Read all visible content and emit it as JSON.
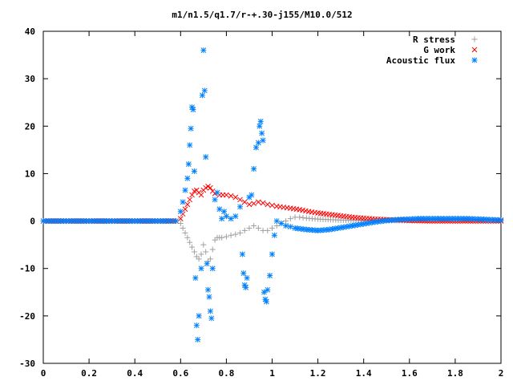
{
  "chart_data": {
    "type": "scatter",
    "title": "m1/n1.5/q1.7/r-+.30-j155/M10.0/512",
    "xlabel": "",
    "ylabel": "",
    "xlim": [
      0,
      2
    ],
    "ylim": [
      -30,
      40
    ],
    "x_ticks": [
      "0",
      "0.2",
      "0.4",
      "0.6",
      "0.8",
      "1",
      "1.2",
      "1.4",
      "1.6",
      "1.8",
      "2"
    ],
    "y_ticks": [
      "-30",
      "-20",
      "-10",
      "0",
      "10",
      "20",
      "30",
      "40"
    ],
    "legend_position": "top-right",
    "grid": false,
    "series": [
      {
        "name": "R stress",
        "color": "#a0a0a0",
        "marker": "plus",
        "points": [
          [
            0.0,
            0
          ],
          [
            0.1,
            0
          ],
          [
            0.2,
            0
          ],
          [
            0.3,
            0
          ],
          [
            0.4,
            0
          ],
          [
            0.5,
            0
          ],
          [
            0.58,
            0
          ],
          [
            0.6,
            -0.5
          ],
          [
            0.61,
            -1.5
          ],
          [
            0.62,
            -2.5
          ],
          [
            0.63,
            -3.5
          ],
          [
            0.64,
            -4.5
          ],
          [
            0.65,
            -5.5
          ],
          [
            0.66,
            -6.5
          ],
          [
            0.67,
            -7.5
          ],
          [
            0.68,
            -8.0
          ],
          [
            0.69,
            -7.0
          ],
          [
            0.7,
            -5.0
          ],
          [
            0.71,
            -6.5
          ],
          [
            0.72,
            -8.5
          ],
          [
            0.73,
            -8.0
          ],
          [
            0.74,
            -6.0
          ],
          [
            0.75,
            -4.0
          ],
          [
            0.76,
            -3.5
          ],
          [
            0.77,
            -3.5
          ],
          [
            0.78,
            -3.5
          ],
          [
            0.8,
            -3.3
          ],
          [
            0.82,
            -3.0
          ],
          [
            0.84,
            -2.8
          ],
          [
            0.86,
            -2.5
          ],
          [
            0.88,
            -2.0
          ],
          [
            0.9,
            -1.5
          ],
          [
            0.92,
            -1.0
          ],
          [
            0.94,
            -1.5
          ],
          [
            0.96,
            -2.0
          ],
          [
            0.98,
            -2.0
          ],
          [
            1.0,
            -1.5
          ],
          [
            1.02,
            -1.0
          ],
          [
            1.04,
            -0.5
          ],
          [
            1.06,
            0.0
          ],
          [
            1.08,
            0.5
          ],
          [
            1.1,
            0.8
          ],
          [
            1.12,
            0.8
          ],
          [
            1.15,
            0.6
          ],
          [
            1.2,
            0.4
          ],
          [
            1.3,
            0.2
          ],
          [
            1.4,
            0.1
          ],
          [
            1.5,
            0.1
          ],
          [
            1.6,
            0.1
          ],
          [
            1.7,
            0.1
          ],
          [
            1.8,
            0.1
          ],
          [
            1.9,
            0.1
          ],
          [
            2.0,
            0.1
          ]
        ]
      },
      {
        "name": "G work",
        "color": "#ff0000",
        "marker": "cross",
        "points": [
          [
            0.0,
            0
          ],
          [
            0.1,
            0
          ],
          [
            0.2,
            0
          ],
          [
            0.3,
            0
          ],
          [
            0.4,
            0
          ],
          [
            0.5,
            0
          ],
          [
            0.58,
            0
          ],
          [
            0.6,
            0.5
          ],
          [
            0.61,
            1.5
          ],
          [
            0.62,
            2.5
          ],
          [
            0.63,
            3.5
          ],
          [
            0.64,
            4.5
          ],
          [
            0.65,
            5.5
          ],
          [
            0.66,
            6.3
          ],
          [
            0.67,
            6.5
          ],
          [
            0.68,
            6.0
          ],
          [
            0.69,
            5.5
          ],
          [
            0.7,
            6.5
          ],
          [
            0.71,
            7.0
          ],
          [
            0.72,
            7.3
          ],
          [
            0.73,
            7.0
          ],
          [
            0.74,
            6.3
          ],
          [
            0.75,
            5.8
          ],
          [
            0.77,
            5.5
          ],
          [
            0.8,
            5.5
          ],
          [
            0.82,
            5.3
          ],
          [
            0.84,
            5.0
          ],
          [
            0.86,
            4.5
          ],
          [
            0.88,
            4.0
          ],
          [
            0.9,
            3.5
          ],
          [
            0.92,
            3.7
          ],
          [
            0.94,
            4.0
          ],
          [
            0.96,
            3.8
          ],
          [
            0.98,
            3.5
          ],
          [
            1.0,
            3.3
          ],
          [
            1.02,
            3.1
          ],
          [
            1.05,
            2.9
          ],
          [
            1.08,
            2.7
          ],
          [
            1.12,
            2.4
          ],
          [
            1.16,
            2.0
          ],
          [
            1.2,
            1.7
          ],
          [
            1.25,
            1.4
          ],
          [
            1.3,
            1.1
          ],
          [
            1.35,
            0.8
          ],
          [
            1.4,
            0.6
          ],
          [
            1.45,
            0.4
          ],
          [
            1.5,
            0.3
          ],
          [
            1.55,
            0.2
          ],
          [
            1.6,
            0.1
          ],
          [
            1.7,
            0.0
          ],
          [
            1.8,
            0.0
          ],
          [
            1.9,
            0.0
          ],
          [
            2.0,
            0.0
          ]
        ]
      },
      {
        "name": "Acoustic flux",
        "color": "#0080ff",
        "marker": "star",
        "points": [
          [
            0.0,
            0
          ],
          [
            0.05,
            0
          ],
          [
            0.1,
            0
          ],
          [
            0.15,
            0
          ],
          [
            0.2,
            0
          ],
          [
            0.25,
            0
          ],
          [
            0.3,
            0
          ],
          [
            0.35,
            0
          ],
          [
            0.4,
            0
          ],
          [
            0.45,
            0
          ],
          [
            0.5,
            0
          ],
          [
            0.55,
            0
          ],
          [
            0.58,
            0
          ],
          [
            0.6,
            2.0
          ],
          [
            0.61,
            4.0
          ],
          [
            0.62,
            6.5
          ],
          [
            0.63,
            9.0
          ],
          [
            0.635,
            12.0
          ],
          [
            0.64,
            16.0
          ],
          [
            0.645,
            19.5
          ],
          [
            0.65,
            24.0
          ],
          [
            0.655,
            23.5
          ],
          [
            0.66,
            10.5
          ],
          [
            0.665,
            -12.0
          ],
          [
            0.67,
            -22.0
          ],
          [
            0.675,
            -25.0
          ],
          [
            0.68,
            -20.0
          ],
          [
            0.69,
            -10.0
          ],
          [
            0.695,
            26.5
          ],
          [
            0.7,
            36.0
          ],
          [
            0.705,
            27.5
          ],
          [
            0.71,
            13.5
          ],
          [
            0.715,
            -9.0
          ],
          [
            0.72,
            -14.5
          ],
          [
            0.725,
            -16.0
          ],
          [
            0.73,
            -19.0
          ],
          [
            0.735,
            -20.5
          ],
          [
            0.74,
            -10.0
          ],
          [
            0.75,
            4.5
          ],
          [
            0.76,
            6.0
          ],
          [
            0.77,
            2.5
          ],
          [
            0.78,
            0.5
          ],
          [
            0.79,
            2.0
          ],
          [
            0.8,
            1.0
          ],
          [
            0.82,
            0.5
          ],
          [
            0.84,
            1.0
          ],
          [
            0.86,
            3.0
          ],
          [
            0.87,
            -7.0
          ],
          [
            0.875,
            -11.0
          ],
          [
            0.88,
            -13.5
          ],
          [
            0.885,
            -14.0
          ],
          [
            0.89,
            -12.0
          ],
          [
            0.9,
            5.0
          ],
          [
            0.91,
            5.5
          ],
          [
            0.92,
            11.0
          ],
          [
            0.93,
            15.5
          ],
          [
            0.94,
            16.5
          ],
          [
            0.945,
            20.0
          ],
          [
            0.95,
            21.0
          ],
          [
            0.955,
            18.5
          ],
          [
            0.96,
            17.0
          ],
          [
            0.965,
            -15.0
          ],
          [
            0.97,
            -16.5
          ],
          [
            0.975,
            -17.0
          ],
          [
            0.98,
            -14.5
          ],
          [
            0.99,
            -11.5
          ],
          [
            1.0,
            -7.0
          ],
          [
            1.01,
            -3.0
          ],
          [
            1.02,
            0.0
          ],
          [
            1.04,
            -0.5
          ],
          [
            1.06,
            -1.0
          ],
          [
            1.08,
            -1.2
          ],
          [
            1.1,
            -1.5
          ],
          [
            1.15,
            -1.8
          ],
          [
            1.2,
            -2.0
          ],
          [
            1.25,
            -1.8
          ],
          [
            1.3,
            -1.4
          ],
          [
            1.35,
            -1.0
          ],
          [
            1.4,
            -0.6
          ],
          [
            1.45,
            -0.2
          ],
          [
            1.5,
            0.1
          ],
          [
            1.55,
            0.3
          ],
          [
            1.6,
            0.4
          ],
          [
            1.65,
            0.5
          ],
          [
            1.7,
            0.5
          ],
          [
            1.75,
            0.5
          ],
          [
            1.8,
            0.5
          ],
          [
            1.85,
            0.5
          ],
          [
            1.9,
            0.4
          ],
          [
            1.95,
            0.3
          ],
          [
            2.0,
            0.2
          ]
        ]
      }
    ]
  }
}
